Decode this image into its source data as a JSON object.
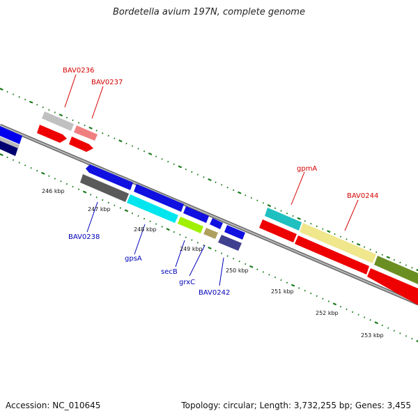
{
  "title": "Bordetella avium 197N, complete genome",
  "accession": "Accession: NC_010645",
  "summary": "Topology: circular; Length: 3,732,255 bp; Genes: 3,455",
  "scale_ticks": [
    "246 kbp",
    "247 kbp",
    "248 kbp",
    "249 kbp",
    "250 kbp",
    "251 kbp",
    "252 kbp",
    "253 kbp"
  ],
  "gene_labels": {
    "BAV0236": "BAV0236",
    "BAV0237": "BAV0237",
    "gpmA": "gpmA",
    "BAV0244": "BAV0244",
    "BAV0238": "BAV0238",
    "gpsA": "gpsA",
    "secB": "secB",
    "grxC": "grxC",
    "BAV0242": "BAV0242"
  },
  "colors": {
    "label_red": "#d40000",
    "label_blue": "#0000b8",
    "backbone": "#888888",
    "tick_green": "#1a7a1a"
  }
}
